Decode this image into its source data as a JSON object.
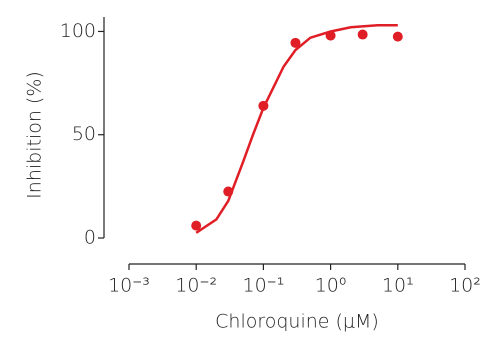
{
  "chart_data": {
    "type": "scatter",
    "x_label": "Chloroquine (μM)",
    "y_label": "Inhibition (%)",
    "color": "#e01e26",
    "xscale": "log",
    "xlim": [
      0.001,
      100
    ],
    "xticks": [
      {
        "value": 0.001,
        "label": "10⁻³"
      },
      {
        "value": 0.01,
        "label": "10⁻²"
      },
      {
        "value": 0.1,
        "label": "10⁻¹"
      },
      {
        "value": 1,
        "label": "10⁰"
      },
      {
        "value": 10,
        "label": "10¹"
      },
      {
        "value": 100,
        "label": "10²"
      }
    ],
    "ylim": [
      0,
      107
    ],
    "yticks": [
      0,
      50,
      100
    ],
    "series": [
      {
        "kind": "line",
        "x": [
          0.01,
          0.02,
          0.03,
          0.05,
          0.07,
          0.1,
          0.2,
          0.3,
          0.5,
          1,
          2,
          5,
          10
        ],
        "values": [
          2.5,
          9,
          18,
          37,
          50,
          63,
          83,
          91,
          97,
          100,
          102,
          103,
          103
        ]
      },
      {
        "kind": "scatter",
        "x": [
          0.01,
          0.03,
          0.1,
          0.3,
          1,
          3,
          10
        ],
        "values": [
          6,
          22.5,
          64,
          94.5,
          98,
          98.5,
          97.5
        ]
      }
    ]
  }
}
